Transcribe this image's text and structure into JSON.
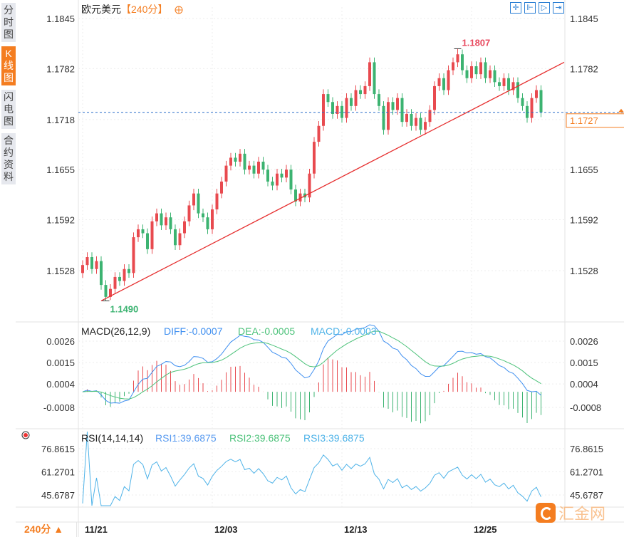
{
  "sidebar": {
    "tabs": [
      {
        "label": "分时图",
        "active": false
      },
      {
        "label": "K线图",
        "active": true
      },
      {
        "label": "闪电图",
        "active": false
      },
      {
        "label": "合约资料",
        "active": false
      }
    ]
  },
  "header": {
    "symbol": "欧元美元",
    "period": "【240分】",
    "zoom_icon": "circle-plus-icon"
  },
  "toolbar": {
    "icons": [
      "crosshair-icon",
      "range-start-icon",
      "play-icon",
      "go-end-icon"
    ]
  },
  "colors": {
    "up": "#e84a4f",
    "down": "#3cb371",
    "trendline": "#e62e2e",
    "diff": "#3f8ff0",
    "dea": "#4cc27a",
    "rsi": "#4fb3e8",
    "accent": "#f47d20",
    "last_price_line": "#2a6fc9"
  },
  "chart_data": [
    {
      "type": "candlestick",
      "title": "欧元美元【240分】",
      "y_ticks": [
        "1.1845",
        "1.1782",
        "1.1718",
        "1.1655",
        "1.1592",
        "1.1528"
      ],
      "ylim": [
        1.147,
        1.187
      ],
      "x_ticks": [
        {
          "index": 0,
          "label": "11/21"
        },
        {
          "index": 28,
          "label": "12/03"
        },
        {
          "index": 56,
          "label": "12/13"
        },
        {
          "index": 84,
          "label": "12/25"
        }
      ],
      "annotations": {
        "high": {
          "index": 81,
          "label": "1.1807"
        },
        "low": {
          "index": 5,
          "label": "1.1490"
        },
        "last_price": "1.1727"
      },
      "trendline": [
        {
          "index": 4,
          "price": 1.149
        },
        {
          "index": 104,
          "price": 1.179
        }
      ],
      "open": [
        1.1525,
        1.1535,
        1.1545,
        1.153,
        1.154,
        1.151,
        1.1495,
        1.1505,
        1.152,
        1.1515,
        1.153,
        1.1525,
        1.157,
        1.158,
        1.1575,
        1.1555,
        1.159,
        1.16,
        1.1585,
        1.1595,
        1.158,
        1.156,
        1.1575,
        1.159,
        1.161,
        1.1625,
        1.16,
        1.1595,
        1.158,
        1.1605,
        1.1625,
        1.164,
        1.166,
        1.167,
        1.1665,
        1.1675,
        1.1655,
        1.166,
        1.165,
        1.1665,
        1.1655,
        1.164,
        1.1635,
        1.165,
        1.1645,
        1.1655,
        1.163,
        1.1615,
        1.1625,
        1.162,
        1.165,
        1.169,
        1.171,
        1.175,
        1.174,
        1.1725,
        1.1735,
        1.172,
        1.1745,
        1.1735,
        1.1755,
        1.175,
        1.176,
        1.179,
        1.175,
        1.1735,
        1.1705,
        1.174,
        1.173,
        1.1745,
        1.1715,
        1.1725,
        1.171,
        1.172,
        1.1705,
        1.1715,
        1.173,
        1.176,
        1.177,
        1.1755,
        1.178,
        1.179,
        1.18,
        1.178,
        1.177,
        1.1785,
        1.1775,
        1.179,
        1.177,
        1.178,
        1.1765,
        1.176,
        1.177,
        1.1755,
        1.1765,
        1.1745,
        1.1735,
        1.172,
        1.1745,
        1.1755
      ],
      "high": [
        1.1541,
        1.1551,
        1.1551,
        1.1546,
        1.1546,
        1.1516,
        1.1511,
        1.1526,
        1.1526,
        1.1536,
        1.1536,
        1.1576,
        1.1586,
        1.1586,
        1.1581,
        1.1596,
        1.1606,
        1.1606,
        1.1601,
        1.1601,
        1.1586,
        1.1581,
        1.1596,
        1.1616,
        1.1631,
        1.1631,
        1.1606,
        1.1601,
        1.1611,
        1.1631,
        1.1646,
        1.1666,
        1.1676,
        1.1676,
        1.1681,
        1.1681,
        1.1666,
        1.1666,
        1.1671,
        1.1671,
        1.1661,
        1.1646,
        1.1656,
        1.1656,
        1.1661,
        1.1661,
        1.1636,
        1.1631,
        1.1631,
        1.1656,
        1.1696,
        1.1716,
        1.1756,
        1.1756,
        1.1746,
        1.1741,
        1.1741,
        1.1751,
        1.1751,
        1.1761,
        1.1761,
        1.1766,
        1.1796,
        1.1796,
        1.1756,
        1.1741,
        1.1746,
        1.1746,
        1.1751,
        1.1751,
        1.1731,
        1.1731,
        1.1726,
        1.1726,
        1.1721,
        1.1736,
        1.1766,
        1.1776,
        1.1776,
        1.1786,
        1.1796,
        1.1807,
        1.1806,
        1.1786,
        1.1791,
        1.1791,
        1.1796,
        1.1796,
        1.1786,
        1.1786,
        1.1771,
        1.1776,
        1.1776,
        1.1771,
        1.1771,
        1.1751,
        1.1741,
        1.1751,
        1.1761,
        1.1761
      ],
      "low": [
        1.1519,
        1.1529,
        1.1524,
        1.1524,
        1.1504,
        1.149,
        1.1491,
        1.1499,
        1.1509,
        1.1509,
        1.1519,
        1.1519,
        1.1564,
        1.1569,
        1.1549,
        1.1549,
        1.1584,
        1.1579,
        1.1579,
        1.1574,
        1.1554,
        1.1554,
        1.1569,
        1.1584,
        1.1604,
        1.1594,
        1.1589,
        1.1574,
        1.1574,
        1.1599,
        1.1619,
        1.1634,
        1.1654,
        1.1659,
        1.1659,
        1.1649,
        1.1649,
        1.1644,
        1.1644,
        1.1649,
        1.1634,
        1.1629,
        1.1629,
        1.1639,
        1.1639,
        1.1624,
        1.1609,
        1.1609,
        1.1614,
        1.1614,
        1.1644,
        1.1684,
        1.1704,
        1.1734,
        1.1719,
        1.1719,
        1.1714,
        1.1714,
        1.1729,
        1.1729,
        1.1744,
        1.1744,
        1.1754,
        1.1744,
        1.1729,
        1.1699,
        1.1699,
        1.1724,
        1.1724,
        1.1709,
        1.1709,
        1.1704,
        1.1704,
        1.1699,
        1.1699,
        1.1709,
        1.1724,
        1.1754,
        1.1749,
        1.1749,
        1.1774,
        1.1784,
        1.1774,
        1.1764,
        1.1764,
        1.1769,
        1.1769,
        1.1764,
        1.1764,
        1.1759,
        1.1754,
        1.1754,
        1.1749,
        1.1749,
        1.1739,
        1.1729,
        1.1714,
        1.1714,
        1.1739,
        1.1721
      ],
      "close": [
        1.1535,
        1.1545,
        1.153,
        1.154,
        1.151,
        1.1495,
        1.1505,
        1.152,
        1.1515,
        1.153,
        1.1525,
        1.157,
        1.158,
        1.1575,
        1.1555,
        1.159,
        1.16,
        1.1585,
        1.1595,
        1.158,
        1.156,
        1.1575,
        1.159,
        1.161,
        1.1625,
        1.16,
        1.1595,
        1.158,
        1.1605,
        1.1625,
        1.164,
        1.166,
        1.167,
        1.1665,
        1.1675,
        1.1655,
        1.166,
        1.165,
        1.1665,
        1.1655,
        1.164,
        1.1635,
        1.165,
        1.1645,
        1.1655,
        1.163,
        1.1615,
        1.1625,
        1.162,
        1.165,
        1.169,
        1.171,
        1.175,
        1.174,
        1.1725,
        1.1735,
        1.172,
        1.1745,
        1.1735,
        1.1755,
        1.175,
        1.176,
        1.179,
        1.175,
        1.1735,
        1.1705,
        1.174,
        1.173,
        1.1745,
        1.1715,
        1.1725,
        1.171,
        1.172,
        1.1705,
        1.1715,
        1.173,
        1.176,
        1.177,
        1.1755,
        1.178,
        1.179,
        1.18,
        1.178,
        1.177,
        1.1785,
        1.1775,
        1.179,
        1.177,
        1.178,
        1.1765,
        1.176,
        1.177,
        1.1755,
        1.1765,
        1.1745,
        1.1735,
        1.172,
        1.1745,
        1.1755,
        1.1727
      ]
    },
    {
      "type": "macd",
      "title": "MACD(26,12,9)",
      "diff_label": "DIFF:-0.0007",
      "dea_label": "DEA:-0.0005",
      "macd_label": "MACD:-0.0003",
      "y_ticks": [
        "0.0026",
        "0.0015",
        "0.0004",
        "-0.0008"
      ],
      "ylim": [
        -0.0017,
        0.003
      ]
    },
    {
      "type": "rsi",
      "title": "RSI(14,14,14)",
      "rsi1_label": "RSI1:39.6875",
      "rsi2_label": "RSI2:39.6875",
      "rsi3_label": "RSI3:39.6875",
      "y_ticks": [
        "76.8615",
        "61.2701",
        "45.6787"
      ],
      "ylim": [
        30,
        85
      ]
    }
  ],
  "footer": {
    "period_button": "240分 ▲"
  },
  "watermark": {
    "text": "汇金网"
  }
}
